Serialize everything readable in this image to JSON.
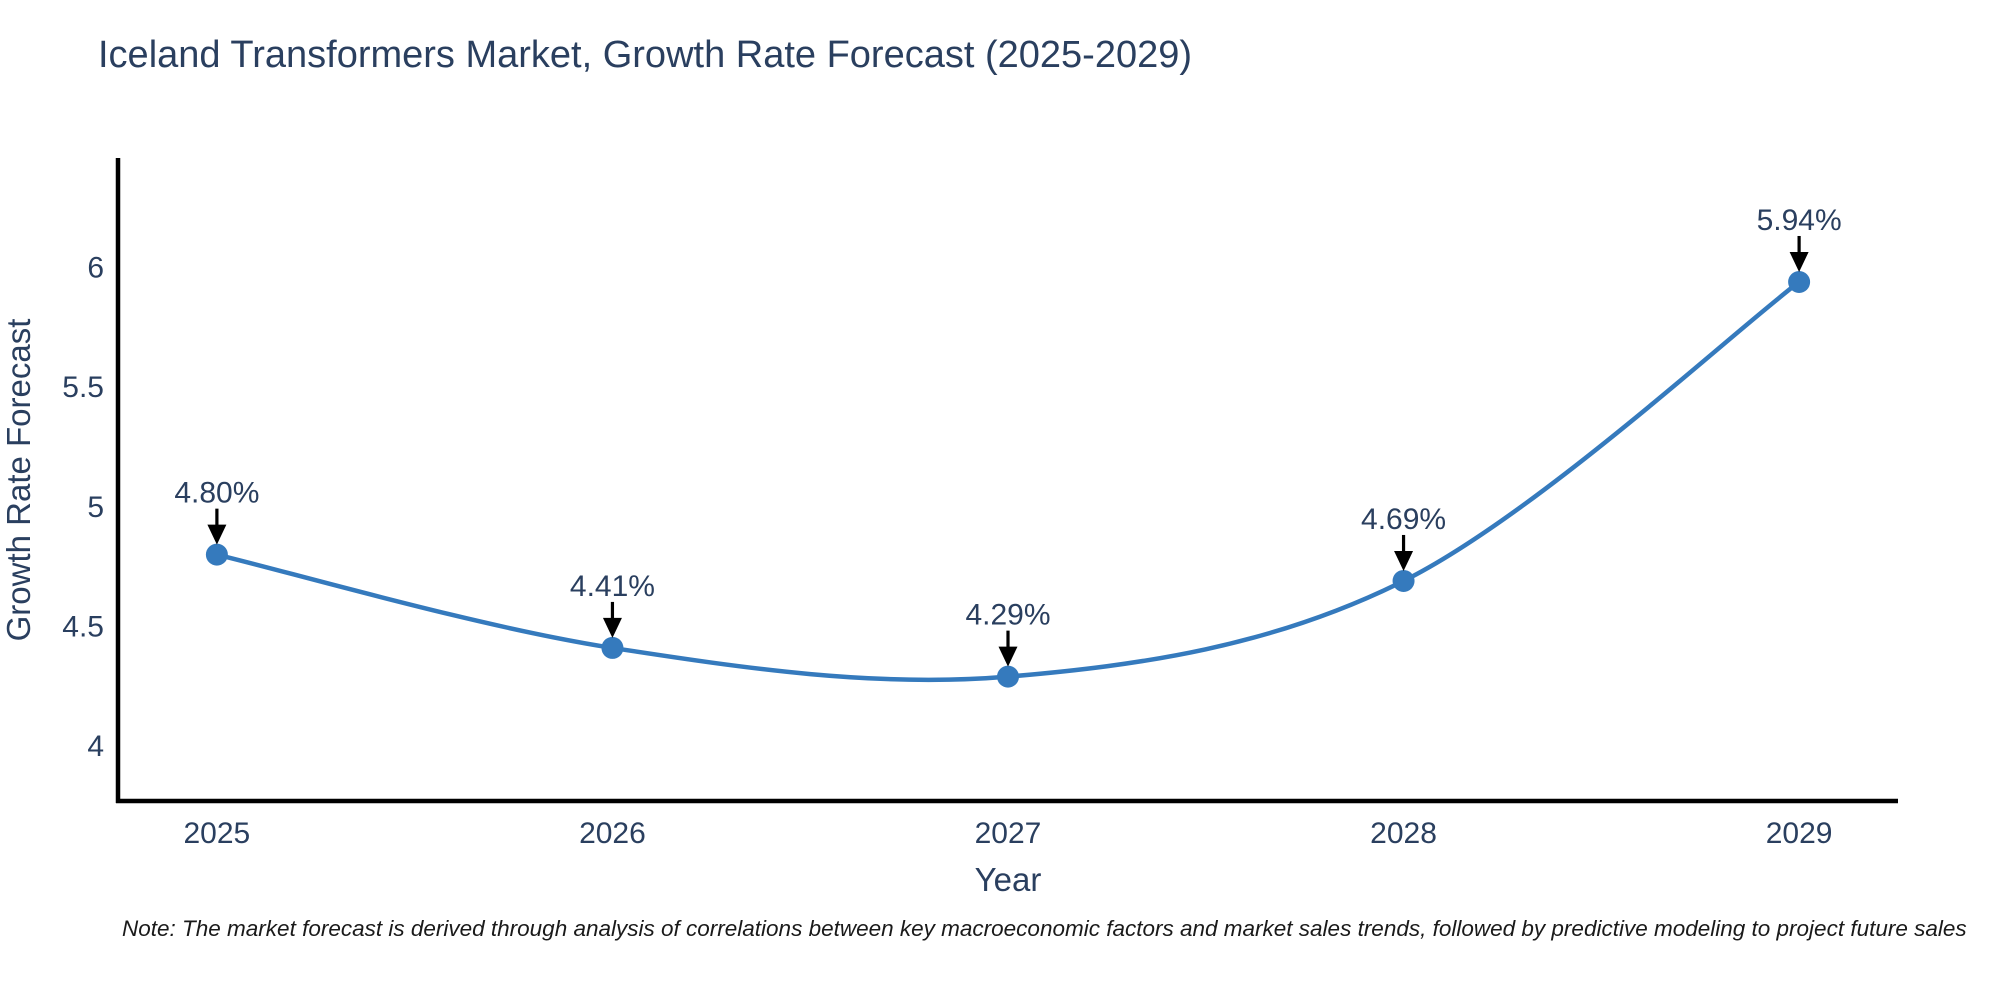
{
  "title": "Iceland Transformers Market, Growth Rate Forecast (2025-2029)",
  "note": "Note: The market forecast is derived through analysis of correlations between key macroeconomic factors and market sales trends, followed by predictive modeling to project future sales",
  "chart_data": {
    "type": "line",
    "line_shape": "spline",
    "x": [
      2025,
      2026,
      2027,
      2028,
      2029
    ],
    "values": [
      4.8,
      4.41,
      4.29,
      4.69,
      5.94
    ],
    "point_labels": [
      "4.80%",
      "4.41%",
      "4.29%",
      "4.69%",
      "5.94%"
    ],
    "xticks": [
      "2025",
      "2026",
      "2027",
      "2028",
      "2029"
    ],
    "yticks": [
      4,
      4.5,
      5,
      5.5,
      6
    ],
    "xlabel": "Year",
    "ylabel": "Growth Rate Forecast",
    "xlim": [
      2024.75,
      2029.25
    ],
    "ylim": [
      3.77,
      6.45
    ],
    "grid": false,
    "legend": "none",
    "colors": {
      "line": "#357abd",
      "marker": "#357abd",
      "axis": "#000000",
      "title": "#2a3f5f",
      "tick": "#2a3f5f",
      "axis_label": "#2a3f5f",
      "annotation_text": "#2a3f5f",
      "arrow": "#000000",
      "note": "#1a1a1a"
    }
  }
}
